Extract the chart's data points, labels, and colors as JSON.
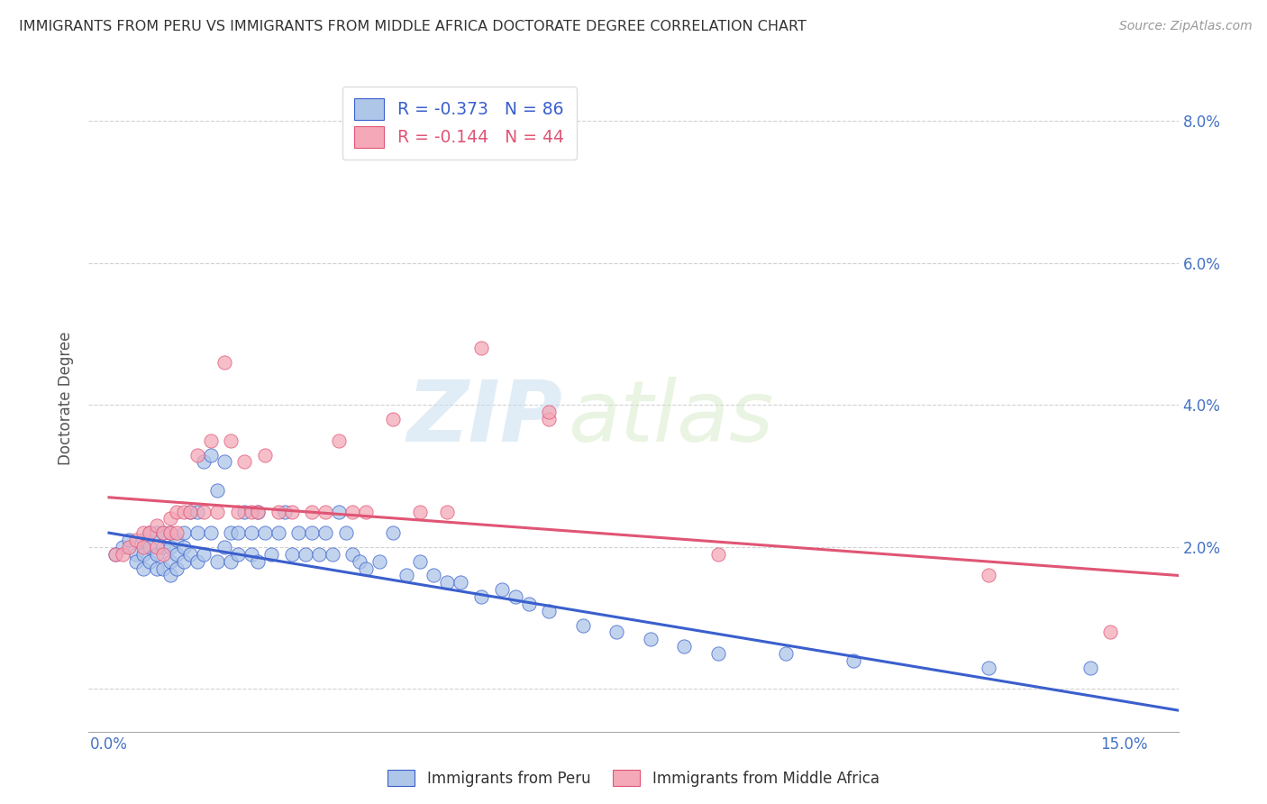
{
  "title": "IMMIGRANTS FROM PERU VS IMMIGRANTS FROM MIDDLE AFRICA DOCTORATE DEGREE CORRELATION CHART",
  "source": "Source: ZipAtlas.com",
  "ylabel": "Doctorate Degree",
  "x_tick_positions": [
    0.0,
    0.05,
    0.1,
    0.15
  ],
  "x_tick_labels": [
    "0.0%",
    "",
    "",
    "15.0%"
  ],
  "y_tick_positions": [
    0.0,
    0.02,
    0.04,
    0.06,
    0.08
  ],
  "y_tick_labels": [
    "",
    "2.0%",
    "4.0%",
    "6.0%",
    "8.0%"
  ],
  "xlim": [
    -0.003,
    0.158
  ],
  "ylim": [
    -0.006,
    0.088
  ],
  "legend_peru_r": "R = -0.373",
  "legend_peru_n": "N = 86",
  "legend_africa_r": "R = -0.144",
  "legend_africa_n": "N = 44",
  "peru_color": "#aec6e8",
  "africa_color": "#f4a8b8",
  "trendline_peru_color": "#3a5fcd",
  "trendline_africa_color": "#e05575",
  "watermark_zip": "ZIP",
  "watermark_atlas": "atlas",
  "background_color": "#ffffff",
  "grid_color": "#cccccc",
  "title_color": "#333333",
  "axis_tick_color": "#4472c4",
  "peru_scatter_x": [
    0.001,
    0.002,
    0.003,
    0.004,
    0.004,
    0.005,
    0.005,
    0.005,
    0.006,
    0.006,
    0.006,
    0.007,
    0.007,
    0.007,
    0.008,
    0.008,
    0.008,
    0.009,
    0.009,
    0.009,
    0.009,
    0.01,
    0.01,
    0.01,
    0.011,
    0.011,
    0.011,
    0.012,
    0.012,
    0.013,
    0.013,
    0.013,
    0.014,
    0.014,
    0.015,
    0.015,
    0.016,
    0.016,
    0.017,
    0.017,
    0.018,
    0.018,
    0.019,
    0.019,
    0.02,
    0.021,
    0.021,
    0.022,
    0.022,
    0.023,
    0.024,
    0.025,
    0.026,
    0.027,
    0.028,
    0.029,
    0.03,
    0.031,
    0.032,
    0.033,
    0.034,
    0.035,
    0.036,
    0.037,
    0.038,
    0.04,
    0.042,
    0.044,
    0.046,
    0.048,
    0.05,
    0.052,
    0.055,
    0.058,
    0.06,
    0.062,
    0.065,
    0.07,
    0.075,
    0.08,
    0.085,
    0.09,
    0.1,
    0.11,
    0.13,
    0.145
  ],
  "peru_scatter_y": [
    0.019,
    0.02,
    0.021,
    0.019,
    0.018,
    0.021,
    0.019,
    0.017,
    0.022,
    0.02,
    0.018,
    0.022,
    0.019,
    0.017,
    0.022,
    0.02,
    0.017,
    0.022,
    0.02,
    0.018,
    0.016,
    0.021,
    0.019,
    0.017,
    0.022,
    0.02,
    0.018,
    0.025,
    0.019,
    0.025,
    0.022,
    0.018,
    0.032,
    0.019,
    0.033,
    0.022,
    0.028,
    0.018,
    0.032,
    0.02,
    0.022,
    0.018,
    0.022,
    0.019,
    0.025,
    0.022,
    0.019,
    0.025,
    0.018,
    0.022,
    0.019,
    0.022,
    0.025,
    0.019,
    0.022,
    0.019,
    0.022,
    0.019,
    0.022,
    0.019,
    0.025,
    0.022,
    0.019,
    0.018,
    0.017,
    0.018,
    0.022,
    0.016,
    0.018,
    0.016,
    0.015,
    0.015,
    0.013,
    0.014,
    0.013,
    0.012,
    0.011,
    0.009,
    0.008,
    0.007,
    0.006,
    0.005,
    0.005,
    0.004,
    0.003,
    0.003
  ],
  "africa_scatter_x": [
    0.001,
    0.002,
    0.003,
    0.004,
    0.005,
    0.005,
    0.006,
    0.007,
    0.007,
    0.008,
    0.008,
    0.009,
    0.009,
    0.01,
    0.01,
    0.011,
    0.012,
    0.013,
    0.014,
    0.015,
    0.016,
    0.017,
    0.018,
    0.019,
    0.02,
    0.021,
    0.022,
    0.023,
    0.025,
    0.027,
    0.03,
    0.032,
    0.034,
    0.036,
    0.038,
    0.042,
    0.046,
    0.05,
    0.055,
    0.065,
    0.065,
    0.09,
    0.13,
    0.148
  ],
  "africa_scatter_y": [
    0.019,
    0.019,
    0.02,
    0.021,
    0.022,
    0.02,
    0.022,
    0.023,
    0.02,
    0.022,
    0.019,
    0.024,
    0.022,
    0.025,
    0.022,
    0.025,
    0.025,
    0.033,
    0.025,
    0.035,
    0.025,
    0.046,
    0.035,
    0.025,
    0.032,
    0.025,
    0.025,
    0.033,
    0.025,
    0.025,
    0.025,
    0.025,
    0.035,
    0.025,
    0.025,
    0.038,
    0.025,
    0.025,
    0.048,
    0.038,
    0.039,
    0.019,
    0.016,
    0.008
  ],
  "peru_trend_x": [
    0.0,
    0.158
  ],
  "peru_trend_y": [
    0.022,
    -0.003
  ],
  "africa_trend_x": [
    0.0,
    0.158
  ],
  "africa_trend_y": [
    0.027,
    0.016
  ]
}
